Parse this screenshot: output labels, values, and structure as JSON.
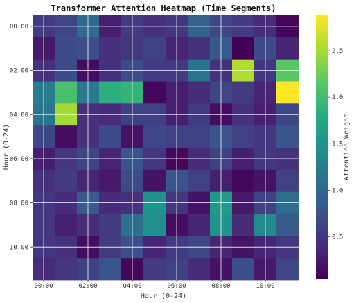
{
  "chart_data": {
    "type": "heatmap",
    "title": "Transformer Attention Heatmap (Time Segments)",
    "xlabel": "Hour (0-24)",
    "ylabel": "Hour (0-24)",
    "colorbar_label": "Attention Weight",
    "colorbar_range": [
      0.05,
      2.88
    ],
    "colorbar_ticks": [
      "0.5",
      "1.0",
      "1.5",
      "2.0",
      "2.5"
    ],
    "colorbar_tick_values": [
      0.5,
      1.0,
      1.5,
      2.0,
      2.5
    ],
    "x_tick_labels": [
      "00:00",
      "02:00",
      "04:00",
      "06:00",
      "08:00",
      "10:00"
    ],
    "y_tick_labels": [
      "00:00",
      "02:00",
      "04:00",
      "06:00",
      "08:00",
      "10:00"
    ],
    "grid": true,
    "colormap": "viridis",
    "values": [
      [
        0.55,
        0.65,
        1.05,
        0.3,
        0.55,
        0.45,
        0.5,
        0.95,
        0.65,
        0.55,
        0.4,
        0.1
      ],
      [
        0.25,
        0.7,
        0.75,
        0.45,
        0.5,
        0.6,
        0.35,
        0.45,
        0.85,
        0.05,
        0.7,
        0.35
      ],
      [
        0.45,
        0.7,
        0.15,
        0.45,
        0.7,
        0.55,
        0.55,
        1.15,
        0.45,
        2.55,
        0.5,
        2.15
      ],
      [
        1.25,
        2.05,
        1.2,
        1.85,
        1.9,
        0.1,
        0.3,
        0.4,
        0.65,
        0.55,
        0.35,
        2.88
      ],
      [
        1.15,
        2.5,
        0.45,
        0.4,
        0.6,
        0.6,
        0.3,
        0.55,
        0.15,
        0.45,
        0.3,
        0.65
      ],
      [
        0.65,
        0.15,
        0.45,
        0.7,
        0.2,
        0.65,
        0.6,
        0.6,
        0.8,
        0.6,
        0.5,
        0.8
      ],
      [
        0.3,
        0.5,
        0.65,
        0.35,
        0.8,
        0.5,
        0.1,
        0.4,
        0.6,
        0.3,
        0.5,
        0.45
      ],
      [
        0.45,
        0.55,
        0.35,
        0.25,
        0.7,
        0.2,
        0.8,
        0.6,
        0.3,
        0.1,
        0.2,
        0.6
      ],
      [
        0.5,
        0.4,
        0.85,
        0.4,
        0.45,
        1.5,
        0.5,
        0.2,
        1.55,
        0.25,
        0.6,
        1.05
      ],
      [
        0.5,
        0.3,
        0.4,
        0.55,
        1.1,
        1.45,
        0.15,
        0.35,
        1.5,
        0.4,
        1.4,
        0.85
      ],
      [
        0.5,
        0.45,
        0.15,
        0.55,
        0.75,
        0.35,
        0.55,
        0.65,
        0.35,
        0.2,
        0.35,
        0.5
      ],
      [
        0.4,
        0.5,
        0.6,
        0.8,
        0.1,
        0.55,
        0.6,
        0.4,
        0.2,
        0.75,
        0.25,
        0.65
      ]
    ]
  }
}
